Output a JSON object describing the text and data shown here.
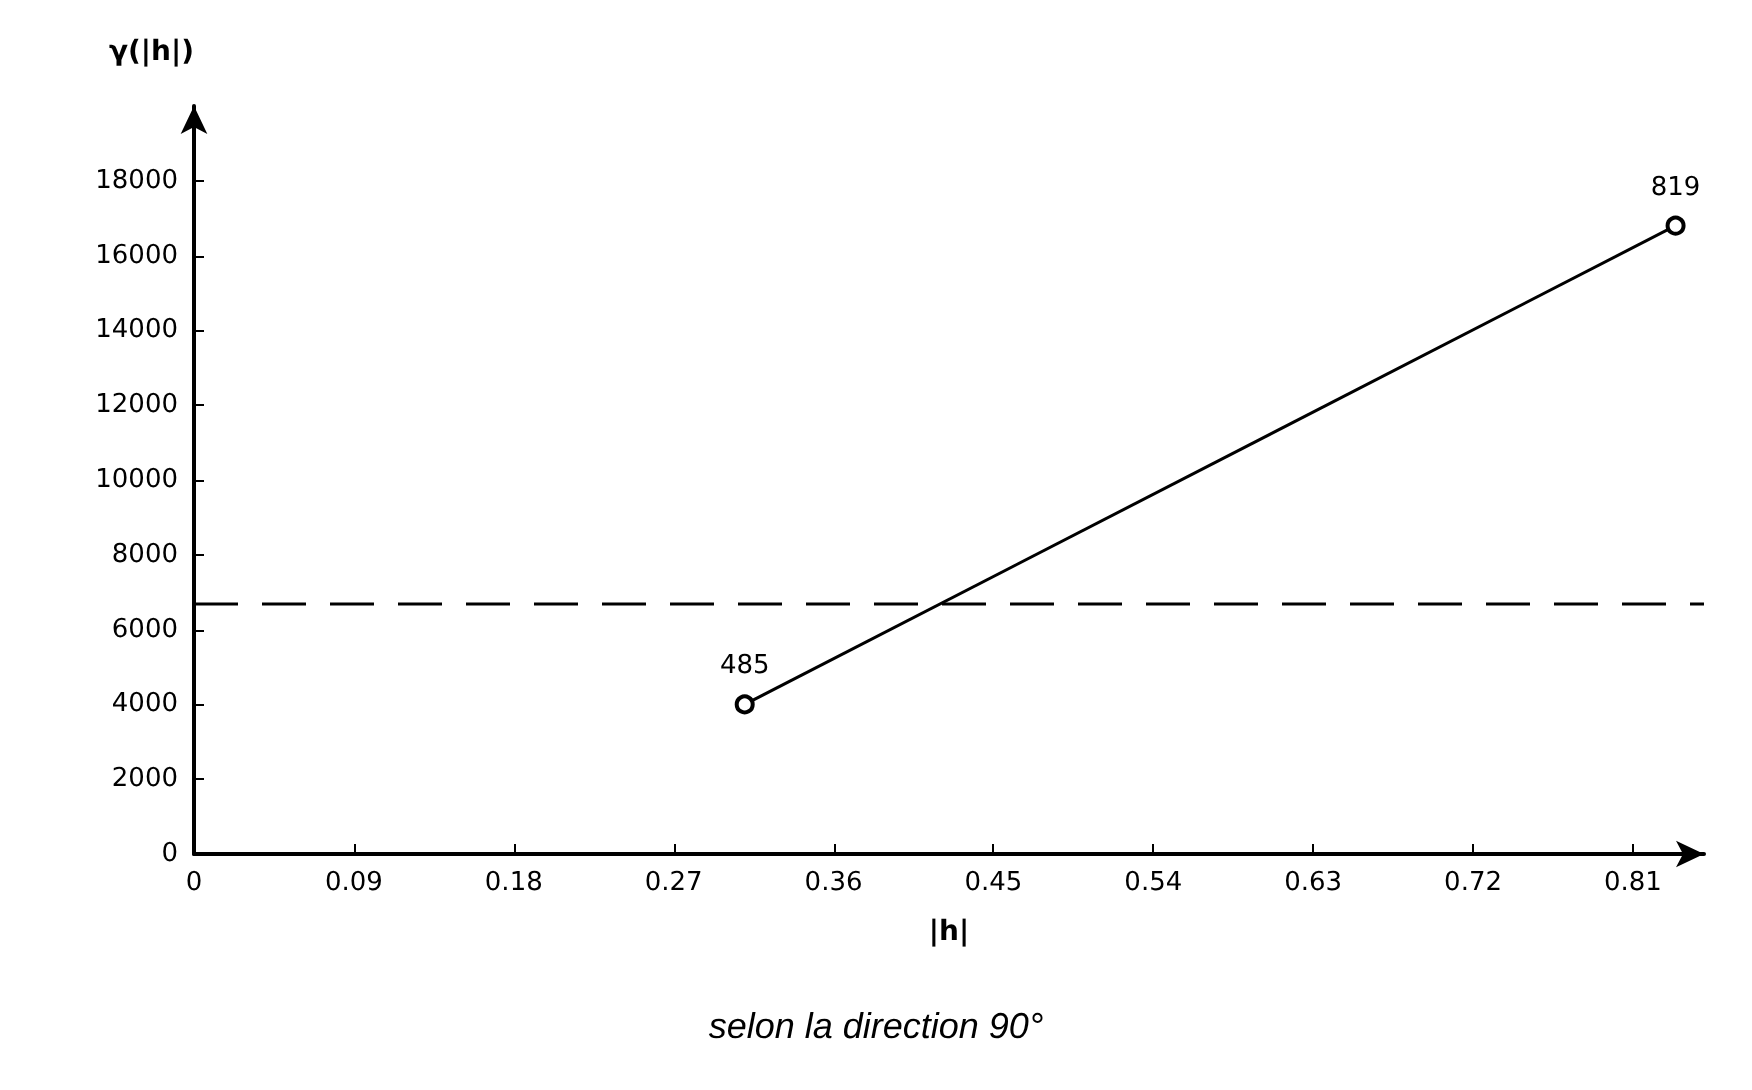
{
  "chart_data": {
    "type": "line",
    "xlabel": "|h|",
    "ylabel": "γ(|h|)",
    "x": [
      0.31,
      0.834
    ],
    "series": [
      {
        "color": "#000000",
        "values": [
          4000,
          16800
        ]
      }
    ],
    "xlim": [
      0,
      0.85
    ],
    "xticks": [
      0,
      0.09,
      0.18,
      0.27,
      0.36,
      0.45,
      0.54,
      0.63,
      0.72,
      0.81
    ],
    "ylim": [
      0,
      20000
    ],
    "yticks": [
      0,
      2000,
      4000,
      6000,
      8000,
      10000,
      12000,
      14000,
      16000,
      18000
    ],
    "ref_lines": [
      {
        "axis": "y",
        "value": 6700,
        "color": "#000000",
        "line_style": "dashed"
      }
    ],
    "annotations": [
      {
        "text": "485",
        "x": 0.31,
        "y": 4000
      },
      {
        "text": "819",
        "x": 0.834,
        "y": 16800
      },
      "selon la direction 90°"
    ],
    "marker": "circle",
    "line_style": "solid",
    "grid": false
  }
}
